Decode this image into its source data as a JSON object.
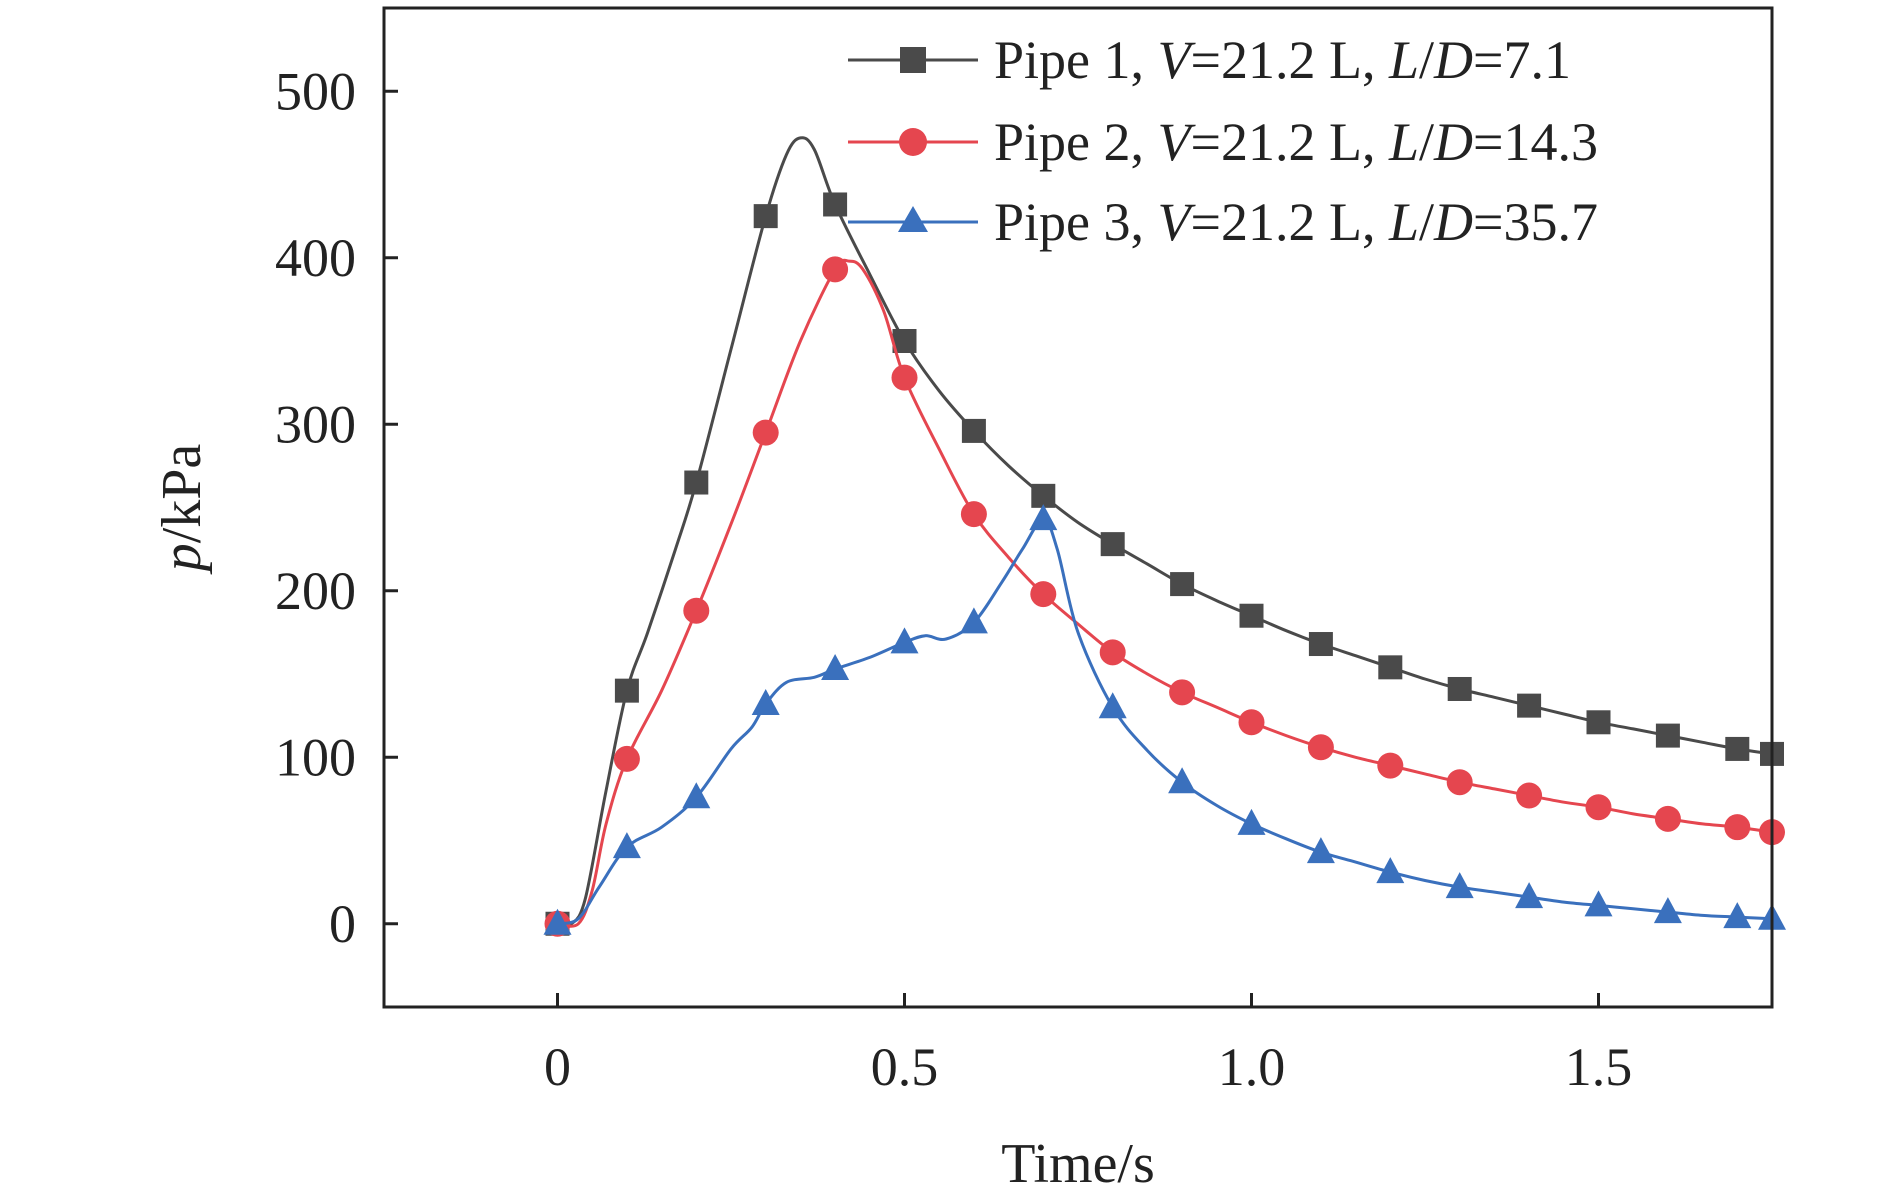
{
  "chart_data": {
    "type": "line",
    "xlabel": "Time/s",
    "ylabel": {
      "var": "p",
      "unit": "/kPa"
    },
    "xlim": [
      -0.25,
      1.75
    ],
    "ylim": [
      -50,
      550
    ],
    "x_ticks": [
      0,
      0.5,
      1.0,
      1.5
    ],
    "x_tick_labels": [
      "0",
      "0.5",
      "1.0",
      "1.5"
    ],
    "y_ticks": [
      0,
      100,
      200,
      300,
      400,
      500
    ],
    "y_tick_labels": [
      "0",
      "100",
      "200",
      "300",
      "400",
      "500"
    ],
    "grid": false,
    "legend_position": "top-right",
    "series": [
      {
        "legend": {
          "name": "Pipe 1, ",
          "v_var": "V",
          "v_val": "=21.2 L, ",
          "ld_var1": "L",
          "ld_sep": "/",
          "ld_var2": "D",
          "ld_val": "=7.1"
        },
        "color": "#4a4a4a",
        "marker": "square",
        "markers": [
          [
            0,
            0
          ],
          [
            0.1,
            140
          ],
          [
            0.2,
            265
          ],
          [
            0.3,
            425
          ],
          [
            0.4,
            432
          ],
          [
            0.5,
            350
          ],
          [
            0.6,
            296
          ],
          [
            0.7,
            257
          ],
          [
            0.8,
            228
          ],
          [
            0.9,
            204
          ],
          [
            1.0,
            185
          ],
          [
            1.1,
            168
          ],
          [
            1.2,
            154
          ],
          [
            1.3,
            141
          ],
          [
            1.4,
            131
          ],
          [
            1.5,
            121
          ],
          [
            1.6,
            113
          ],
          [
            1.7,
            105
          ],
          [
            1.75,
            102
          ]
        ],
        "curve": [
          [
            0,
            0
          ],
          [
            0.02,
            0
          ],
          [
            0.04,
            15
          ],
          [
            0.07,
            80
          ],
          [
            0.1,
            140
          ],
          [
            0.13,
            175
          ],
          [
            0.17,
            225
          ],
          [
            0.2,
            265
          ],
          [
            0.25,
            345
          ],
          [
            0.3,
            425
          ],
          [
            0.33,
            462
          ],
          [
            0.35,
            472
          ],
          [
            0.37,
            465
          ],
          [
            0.4,
            432
          ],
          [
            0.45,
            390
          ],
          [
            0.5,
            350
          ],
          [
            0.55,
            320
          ],
          [
            0.6,
            296
          ],
          [
            0.65,
            275
          ],
          [
            0.7,
            257
          ],
          [
            0.75,
            241
          ],
          [
            0.8,
            228
          ],
          [
            0.85,
            216
          ],
          [
            0.9,
            204
          ],
          [
            0.95,
            194
          ],
          [
            1.0,
            185
          ],
          [
            1.05,
            176
          ],
          [
            1.1,
            168
          ],
          [
            1.15,
            161
          ],
          [
            1.2,
            154
          ],
          [
            1.25,
            147
          ],
          [
            1.3,
            141
          ],
          [
            1.35,
            136
          ],
          [
            1.4,
            131
          ],
          [
            1.45,
            126
          ],
          [
            1.5,
            121
          ],
          [
            1.55,
            117
          ],
          [
            1.6,
            113
          ],
          [
            1.65,
            109
          ],
          [
            1.7,
            105
          ],
          [
            1.75,
            102
          ]
        ]
      },
      {
        "legend": {
          "name": "Pipe 2, ",
          "v_var": "V",
          "v_val": "=21.2 L, ",
          "ld_var1": "L",
          "ld_sep": "/",
          "ld_var2": "D",
          "ld_val": "=14.3"
        },
        "color": "#e5464f",
        "marker": "circle",
        "markers": [
          [
            0,
            0
          ],
          [
            0.1,
            99
          ],
          [
            0.2,
            188
          ],
          [
            0.3,
            295
          ],
          [
            0.4,
            393
          ],
          [
            0.5,
            328
          ],
          [
            0.6,
            246
          ],
          [
            0.7,
            198
          ],
          [
            0.8,
            163
          ],
          [
            0.9,
            139
          ],
          [
            1.0,
            121
          ],
          [
            1.1,
            106
          ],
          [
            1.2,
            95
          ],
          [
            1.3,
            85
          ],
          [
            1.4,
            77
          ],
          [
            1.5,
            70
          ],
          [
            1.6,
            63
          ],
          [
            1.7,
            58
          ],
          [
            1.75,
            55
          ]
        ],
        "curve": [
          [
            0,
            0
          ],
          [
            0.03,
            0
          ],
          [
            0.05,
            20
          ],
          [
            0.07,
            60
          ],
          [
            0.1,
            99
          ],
          [
            0.15,
            140
          ],
          [
            0.2,
            188
          ],
          [
            0.25,
            240
          ],
          [
            0.3,
            295
          ],
          [
            0.35,
            350
          ],
          [
            0.4,
            393
          ],
          [
            0.42,
            398
          ],
          [
            0.44,
            393
          ],
          [
            0.47,
            368
          ],
          [
            0.5,
            328
          ],
          [
            0.55,
            285
          ],
          [
            0.6,
            246
          ],
          [
            0.65,
            220
          ],
          [
            0.7,
            198
          ],
          [
            0.75,
            180
          ],
          [
            0.8,
            163
          ],
          [
            0.85,
            150
          ],
          [
            0.9,
            139
          ],
          [
            0.95,
            130
          ],
          [
            1.0,
            121
          ],
          [
            1.05,
            113
          ],
          [
            1.1,
            106
          ],
          [
            1.15,
            100
          ],
          [
            1.2,
            95
          ],
          [
            1.25,
            90
          ],
          [
            1.3,
            85
          ],
          [
            1.35,
            81
          ],
          [
            1.4,
            77
          ],
          [
            1.45,
            73
          ],
          [
            1.5,
            70
          ],
          [
            1.55,
            66
          ],
          [
            1.6,
            63
          ],
          [
            1.65,
            60
          ],
          [
            1.7,
            58
          ],
          [
            1.75,
            55
          ]
        ]
      },
      {
        "legend": {
          "name": "Pipe 3, ",
          "v_var": "V",
          "v_val": "=21.2 L, ",
          "ld_var1": "L",
          "ld_sep": "/",
          "ld_var2": "D",
          "ld_val": "=35.7"
        },
        "color": "#3a70bd",
        "marker": "triangle",
        "markers": [
          [
            0,
            0
          ],
          [
            0.1,
            46
          ],
          [
            0.2,
            76
          ],
          [
            0.3,
            132
          ],
          [
            0.4,
            153
          ],
          [
            0.5,
            169
          ],
          [
            0.6,
            181
          ],
          [
            0.7,
            243
          ],
          [
            0.8,
            130
          ],
          [
            0.9,
            85
          ],
          [
            1.0,
            60
          ],
          [
            1.1,
            43
          ],
          [
            1.2,
            31
          ],
          [
            1.3,
            22
          ],
          [
            1.4,
            16
          ],
          [
            1.5,
            11
          ],
          [
            1.6,
            7
          ],
          [
            1.7,
            4
          ],
          [
            1.75,
            3
          ]
        ],
        "curve": [
          [
            0,
            0
          ],
          [
            0.03,
            3
          ],
          [
            0.06,
            22
          ],
          [
            0.1,
            46
          ],
          [
            0.15,
            58
          ],
          [
            0.2,
            76
          ],
          [
            0.25,
            105
          ],
          [
            0.28,
            118
          ],
          [
            0.3,
            132
          ],
          [
            0.33,
            145
          ],
          [
            0.37,
            148
          ],
          [
            0.4,
            153
          ],
          [
            0.45,
            160
          ],
          [
            0.5,
            169
          ],
          [
            0.53,
            173
          ],
          [
            0.56,
            171
          ],
          [
            0.6,
            181
          ],
          [
            0.64,
            205
          ],
          [
            0.67,
            225
          ],
          [
            0.7,
            243
          ],
          [
            0.72,
            225
          ],
          [
            0.75,
            175
          ],
          [
            0.8,
            130
          ],
          [
            0.85,
            104
          ],
          [
            0.9,
            85
          ],
          [
            0.95,
            71
          ],
          [
            1.0,
            60
          ],
          [
            1.05,
            51
          ],
          [
            1.1,
            43
          ],
          [
            1.15,
            37
          ],
          [
            1.2,
            31
          ],
          [
            1.25,
            26
          ],
          [
            1.3,
            22
          ],
          [
            1.35,
            19
          ],
          [
            1.4,
            16
          ],
          [
            1.45,
            13
          ],
          [
            1.5,
            11
          ],
          [
            1.55,
            9
          ],
          [
            1.6,
            7
          ],
          [
            1.65,
            5
          ],
          [
            1.7,
            4
          ],
          [
            1.75,
            3
          ]
        ]
      }
    ]
  }
}
